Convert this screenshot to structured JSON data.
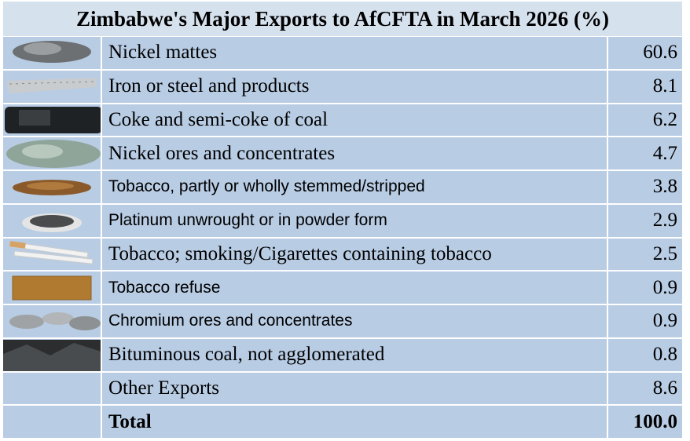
{
  "title": "Zimbabwe's Major Exports to AfCFTA in March 2026 (%)",
  "table": {
    "rows": [
      [
        "Nickel mattes",
        "60.6"
      ],
      [
        "Iron or steel and products",
        "8.1"
      ],
      [
        "Coke and semi-coke of coal",
        "6.2"
      ],
      [
        "Nickel ores and concentrates",
        "4.7"
      ],
      [
        "Tobacco, partly or wholly stemmed/stripped",
        "3.8"
      ],
      [
        "Platinum unwrought or in powder form",
        "2.9"
      ],
      [
        "Tobacco; smoking/Cigarettes containing tobacco",
        "2.5"
      ],
      [
        "Tobacco refuse",
        "0.9"
      ],
      [
        "Chromium ores and concentrates",
        "0.9"
      ],
      [
        "Bituminous coal,  not agglomerated",
        "0.8"
      ],
      [
        "Other Exports",
        "8.6"
      ],
      [
        "Total",
        "100.0"
      ]
    ]
  }
}
